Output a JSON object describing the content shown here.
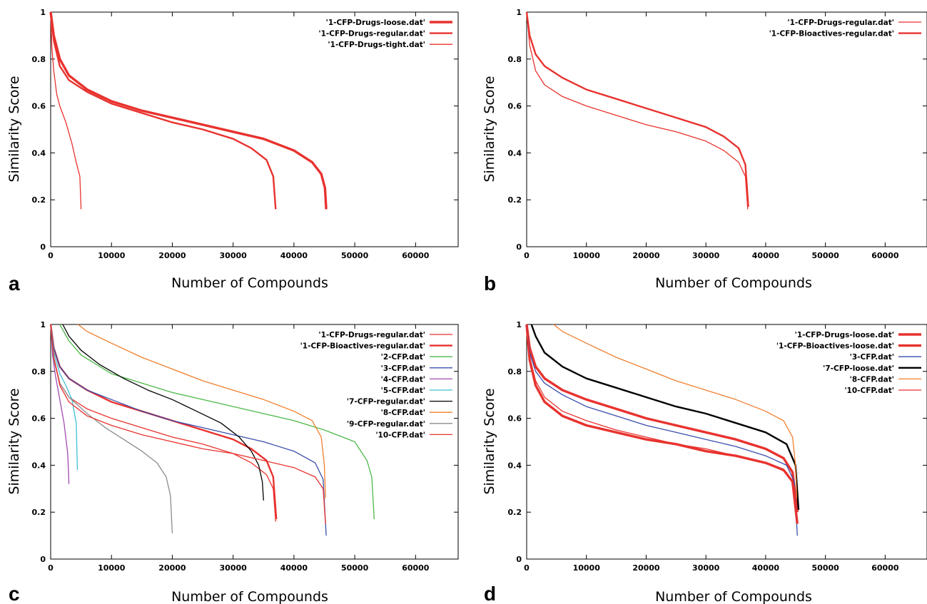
{
  "chart_data": [
    {
      "panel": "a",
      "type": "line",
      "xlabel": "Number of Compounds",
      "ylabel": "Similarity Score",
      "xlim": [
        0,
        67000
      ],
      "ylim": [
        0,
        1
      ],
      "xticks": [
        "0",
        "10000",
        "20000",
        "30000",
        "40000",
        "50000",
        "60000"
      ],
      "yticks": [
        "0",
        "0.2",
        "0.4",
        "0.6",
        "0.8",
        "1"
      ],
      "grid": false,
      "legend": "top-right",
      "series": [
        {
          "name": "'1-CFP-Drugs-loose.dat'",
          "color": "#e8322e",
          "width": 3.4,
          "x": [
            0,
            500,
            1500,
            3000,
            6000,
            10000,
            15000,
            20000,
            25000,
            30000,
            35000,
            40000,
            43000,
            44500,
            45100,
            45300
          ],
          "y": [
            1.0,
            0.9,
            0.8,
            0.73,
            0.67,
            0.62,
            0.58,
            0.55,
            0.52,
            0.49,
            0.46,
            0.41,
            0.36,
            0.31,
            0.25,
            0.16
          ]
        },
        {
          "name": "'1-CFP-Drugs-regular.dat'",
          "color": "#e8322e",
          "width": 2.4,
          "x": [
            0,
            500,
            1500,
            3000,
            6000,
            10000,
            15000,
            20000,
            25000,
            30000,
            33000,
            35500,
            36600,
            37000
          ],
          "y": [
            1.0,
            0.88,
            0.77,
            0.71,
            0.66,
            0.61,
            0.57,
            0.53,
            0.5,
            0.46,
            0.42,
            0.37,
            0.3,
            0.16
          ]
        },
        {
          "name": "'1-CFP-Drugs-tight.dat'",
          "color": "#e8322e",
          "width": 1.3,
          "x": [
            0,
            200,
            500,
            1000,
            1500,
            2500,
            3500,
            4200,
            4800,
            5000
          ],
          "y": [
            1.0,
            0.85,
            0.75,
            0.65,
            0.6,
            0.53,
            0.44,
            0.36,
            0.3,
            0.16
          ]
        }
      ]
    },
    {
      "panel": "b",
      "type": "line",
      "xlabel": "Number of Compounds",
      "ylabel": "Similarity Score",
      "xlim": [
        0,
        67000
      ],
      "ylim": [
        0,
        1
      ],
      "xticks": [
        "0",
        "10000",
        "20000",
        "30000",
        "40000",
        "50000",
        "60000"
      ],
      "yticks": [
        "0",
        "0.2",
        "0.4",
        "0.6",
        "0.8",
        "1"
      ],
      "grid": false,
      "legend": "top-right",
      "series": [
        {
          "name": "'1-CFP-Drugs-regular.dat'",
          "color": "#e8322e",
          "width": 1.3,
          "x": [
            0,
            500,
            1500,
            3000,
            6000,
            10000,
            15000,
            20000,
            25000,
            30000,
            33000,
            35500,
            36600,
            37000
          ],
          "y": [
            1.0,
            0.86,
            0.75,
            0.69,
            0.64,
            0.6,
            0.56,
            0.52,
            0.49,
            0.45,
            0.41,
            0.36,
            0.3,
            0.16
          ]
        },
        {
          "name": "'1-CFP-Bioactives-regular.dat'",
          "color": "#e8322e",
          "width": 2.4,
          "x": [
            0,
            500,
            1500,
            3000,
            6000,
            10000,
            15000,
            20000,
            25000,
            30000,
            33000,
            35500,
            36600,
            37100
          ],
          "y": [
            1.0,
            0.9,
            0.82,
            0.77,
            0.72,
            0.67,
            0.63,
            0.59,
            0.55,
            0.51,
            0.47,
            0.42,
            0.35,
            0.17
          ]
        }
      ]
    },
    {
      "panel": "c",
      "type": "line",
      "xlabel": "Number of Compounds",
      "ylabel": "Similarity Score",
      "xlim": [
        0,
        67000
      ],
      "ylim": [
        0,
        1
      ],
      "xticks": [
        "0",
        "10000",
        "20000",
        "30000",
        "40000",
        "50000",
        "60000"
      ],
      "yticks": [
        "0",
        "0.2",
        "0.4",
        "0.6",
        "0.8",
        "1"
      ],
      "grid": false,
      "legend": "top-right",
      "series": [
        {
          "name": "'1-CFP-Drugs-regular.dat'",
          "color": "#e8322e",
          "width": 1.3,
          "x": [
            0,
            500,
            1500,
            3000,
            6000,
            10000,
            15000,
            20000,
            25000,
            30000,
            33000,
            35500,
            36600,
            37000
          ],
          "y": [
            1.0,
            0.86,
            0.75,
            0.69,
            0.64,
            0.6,
            0.56,
            0.52,
            0.49,
            0.45,
            0.41,
            0.36,
            0.3,
            0.16
          ]
        },
        {
          "name": "'1-CFP-Bioactives-regular.dat'",
          "color": "#e8322e",
          "width": 2.4,
          "x": [
            0,
            500,
            1500,
            3000,
            6000,
            10000,
            15000,
            20000,
            25000,
            30000,
            33000,
            35500,
            36600,
            37100
          ],
          "y": [
            1.0,
            0.9,
            0.82,
            0.77,
            0.72,
            0.67,
            0.63,
            0.59,
            0.55,
            0.51,
            0.47,
            0.42,
            0.35,
            0.17
          ]
        },
        {
          "name": "'2-CFP.dat'",
          "color": "#4cb848",
          "width": 1.3,
          "x": [
            1500,
            3000,
            5000,
            10000,
            15000,
            20000,
            25000,
            30000,
            35000,
            40000,
            45000,
            50000,
            52000,
            52800,
            53200
          ],
          "y": [
            1.0,
            0.93,
            0.87,
            0.79,
            0.75,
            0.71,
            0.68,
            0.65,
            0.62,
            0.59,
            0.55,
            0.5,
            0.42,
            0.35,
            0.17
          ]
        },
        {
          "name": "'3-CFP.dat'",
          "color": "#3a4dab",
          "width": 1.3,
          "x": [
            0,
            500,
            1500,
            3000,
            6000,
            10000,
            15000,
            20000,
            25000,
            30000,
            35000,
            40000,
            43500,
            44800,
            45300
          ],
          "y": [
            1.0,
            0.9,
            0.82,
            0.77,
            0.72,
            0.68,
            0.63,
            0.59,
            0.56,
            0.53,
            0.5,
            0.46,
            0.41,
            0.34,
            0.1
          ]
        },
        {
          "name": "'4-CFP.dat'",
          "color": "#a24bb0",
          "width": 1.3,
          "x": [
            0,
            300,
            800,
            1500,
            2200,
            2800,
            3000
          ],
          "y": [
            1.0,
            0.87,
            0.78,
            0.68,
            0.58,
            0.45,
            0.32
          ]
        },
        {
          "name": "'5-CFP.dat'",
          "color": "#3ec0d6",
          "width": 1.3,
          "x": [
            0,
            500,
            1500,
            2500,
            3500,
            4200,
            4400
          ],
          "y": [
            1.0,
            0.88,
            0.79,
            0.74,
            0.68,
            0.58,
            0.38
          ]
        },
        {
          "name": "'7-CFP-regular.dat'",
          "color": "#000000",
          "width": 1.3,
          "x": [
            2000,
            3000,
            5000,
            8000,
            12000,
            16000,
            20000,
            24000,
            28000,
            31000,
            33000,
            34200,
            34800,
            35000
          ],
          "y": [
            1.0,
            0.95,
            0.89,
            0.83,
            0.77,
            0.72,
            0.68,
            0.63,
            0.58,
            0.52,
            0.46,
            0.4,
            0.33,
            0.25
          ]
        },
        {
          "name": "'8-CFP.dat'",
          "color": "#f07f2e",
          "width": 1.3,
          "x": [
            4500,
            6000,
            10000,
            15000,
            20000,
            25000,
            30000,
            35000,
            40000,
            43000,
            44500,
            45000,
            45200
          ],
          "y": [
            1.0,
            0.97,
            0.92,
            0.86,
            0.81,
            0.76,
            0.72,
            0.68,
            0.63,
            0.59,
            0.52,
            0.4,
            0.26
          ]
        },
        {
          "name": "'9-CFP-regular.dat'",
          "color": "#8c8c8c",
          "width": 1.3,
          "x": [
            0,
            500,
            1500,
            3000,
            6000,
            9000,
            12000,
            15000,
            17500,
            19000,
            19700,
            20000
          ],
          "y": [
            1.0,
            0.85,
            0.75,
            0.69,
            0.62,
            0.56,
            0.51,
            0.46,
            0.41,
            0.35,
            0.27,
            0.11
          ]
        },
        {
          "name": "'10-CFP.dat'",
          "color": "#e8322e",
          "width": 1.3,
          "x": [
            0,
            500,
            1500,
            3000,
            6000,
            10000,
            15000,
            20000,
            25000,
            30000,
            35000,
            40000,
            43500,
            44800,
            45200
          ],
          "y": [
            1.0,
            0.86,
            0.74,
            0.67,
            0.61,
            0.57,
            0.53,
            0.5,
            0.47,
            0.45,
            0.42,
            0.39,
            0.35,
            0.3,
            0.15
          ]
        }
      ]
    },
    {
      "panel": "d",
      "type": "line",
      "xlabel": "Number of Compounds",
      "ylabel": "Similarity Score",
      "xlim": [
        0,
        67000
      ],
      "ylim": [
        0,
        1
      ],
      "xticks": [
        "0",
        "10000",
        "20000",
        "30000",
        "40000",
        "50000",
        "60000"
      ],
      "yticks": [
        "0",
        "0.2",
        "0.4",
        "0.6",
        "0.8",
        "1"
      ],
      "grid": false,
      "legend": "top-right",
      "series": [
        {
          "name": "'1-CFP-Drugs-loose.dat'",
          "color": "#e8322e",
          "width": 3.4,
          "x": [
            0,
            500,
            1500,
            3000,
            6000,
            10000,
            15000,
            20000,
            25000,
            30000,
            35000,
            40000,
            43000,
            44500,
            45300
          ],
          "y": [
            1.0,
            0.85,
            0.74,
            0.67,
            0.61,
            0.57,
            0.54,
            0.51,
            0.49,
            0.46,
            0.44,
            0.41,
            0.38,
            0.33,
            0.15
          ]
        },
        {
          "name": "'1-CFP-Bioactives-loose.dat'",
          "color": "#e8322e",
          "width": 3.4,
          "x": [
            0,
            500,
            1500,
            3000,
            6000,
            10000,
            15000,
            20000,
            25000,
            30000,
            35000,
            40000,
            43000,
            44500,
            45300
          ],
          "y": [
            1.0,
            0.9,
            0.82,
            0.77,
            0.72,
            0.68,
            0.64,
            0.6,
            0.57,
            0.54,
            0.51,
            0.47,
            0.43,
            0.37,
            0.2
          ]
        },
        {
          "name": "'3-CFP.dat'",
          "color": "#3a4dab",
          "width": 1.3,
          "x": [
            0,
            500,
            1500,
            3000,
            6000,
            10000,
            15000,
            20000,
            25000,
            30000,
            35000,
            40000,
            43500,
            44800,
            45300
          ],
          "y": [
            1.0,
            0.88,
            0.8,
            0.75,
            0.7,
            0.65,
            0.61,
            0.57,
            0.54,
            0.51,
            0.48,
            0.44,
            0.4,
            0.33,
            0.1
          ]
        },
        {
          "name": "'7-CFP-loose.dat'",
          "color": "#000000",
          "width": 2.4,
          "x": [
            800,
            1500,
            3000,
            6000,
            10000,
            15000,
            20000,
            25000,
            30000,
            35000,
            40000,
            43500,
            45000,
            45500
          ],
          "y": [
            1.0,
            0.95,
            0.88,
            0.82,
            0.77,
            0.73,
            0.69,
            0.65,
            0.62,
            0.58,
            0.54,
            0.49,
            0.4,
            0.21
          ]
        },
        {
          "name": "'8-CFP.dat'",
          "color": "#f07f2e",
          "width": 1.3,
          "x": [
            4500,
            6000,
            10000,
            15000,
            20000,
            25000,
            30000,
            35000,
            40000,
            43000,
            44500,
            45000,
            45200
          ],
          "y": [
            1.0,
            0.97,
            0.92,
            0.86,
            0.81,
            0.76,
            0.72,
            0.68,
            0.63,
            0.59,
            0.52,
            0.4,
            0.26
          ]
        },
        {
          "name": "'10-CFP.dat'",
          "color": "#e8322e",
          "width": 1.3,
          "x": [
            0,
            500,
            1500,
            3000,
            6000,
            10000,
            15000,
            20000,
            25000,
            30000,
            35000,
            40000,
            43500,
            44800,
            45200
          ],
          "y": [
            1.0,
            0.86,
            0.76,
            0.69,
            0.63,
            0.59,
            0.55,
            0.52,
            0.49,
            0.47,
            0.44,
            0.41,
            0.37,
            0.31,
            0.15
          ]
        }
      ]
    }
  ]
}
